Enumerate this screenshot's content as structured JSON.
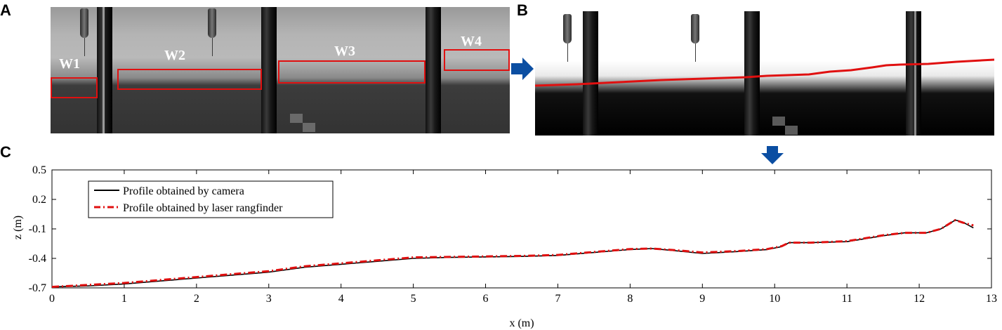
{
  "panels": {
    "a": {
      "letter": "A",
      "windows": [
        "W1",
        "W2",
        "W3",
        "W4"
      ]
    },
    "b": {
      "letter": "B"
    },
    "c": {
      "letter": "C"
    }
  },
  "colors": {
    "box": "#e01010",
    "arrow": "#0b4ea2",
    "camera": "#000000",
    "laser": "#e01010"
  },
  "icons": [
    "right-arrow-icon",
    "down-arrow-icon"
  ],
  "chart_data": {
    "type": "line",
    "title": "",
    "xlabel": "x (m)",
    "ylabel": "z (m)",
    "xlim": [
      0,
      13
    ],
    "ylim": [
      -0.7,
      0.5
    ],
    "xticks": [
      0,
      1,
      2,
      3,
      4,
      5,
      6,
      7,
      8,
      9,
      10,
      11,
      12,
      13
    ],
    "yticks": [
      "0.5",
      "0.2",
      "-0.1",
      "-0.4",
      "-0.7"
    ],
    "legend": "top-left",
    "grid": false,
    "series": [
      {
        "name": "Profile obtained by camera",
        "style": "solid",
        "x": [
          0,
          0.5,
          1,
          1.5,
          2,
          2.5,
          3,
          3.5,
          4,
          4.5,
          5,
          5.5,
          6,
          6.5,
          7,
          7.5,
          8,
          8.3,
          8.6,
          9,
          9.5,
          9.9,
          10.1,
          10.2,
          10.5,
          11,
          11.5,
          11.8,
          12.1,
          12.3,
          12.5,
          12.6,
          12.75
        ],
        "y": [
          -0.69,
          -0.68,
          -0.66,
          -0.63,
          -0.6,
          -0.57,
          -0.54,
          -0.49,
          -0.46,
          -0.43,
          -0.4,
          -0.39,
          -0.385,
          -0.38,
          -0.37,
          -0.34,
          -0.31,
          -0.3,
          -0.32,
          -0.35,
          -0.33,
          -0.31,
          -0.28,
          -0.24,
          -0.24,
          -0.23,
          -0.17,
          -0.14,
          -0.14,
          -0.1,
          -0.01,
          -0.03,
          -0.09
        ]
      },
      {
        "name": "Profile obtained by laser rangfinder",
        "style": "dash-dot",
        "x": [
          0,
          0.5,
          1,
          1.5,
          2,
          2.5,
          3,
          3.5,
          4,
          4.5,
          5,
          5.5,
          6,
          6.5,
          7,
          7.5,
          8,
          8.3,
          8.6,
          9,
          9.5,
          9.9,
          10.1,
          10.2,
          10.5,
          11,
          11.5,
          11.8,
          12.1,
          12.3,
          12.5,
          12.6,
          12.75
        ],
        "y": [
          -0.69,
          -0.67,
          -0.65,
          -0.62,
          -0.59,
          -0.56,
          -0.53,
          -0.48,
          -0.45,
          -0.42,
          -0.39,
          -0.385,
          -0.38,
          -0.375,
          -0.365,
          -0.335,
          -0.305,
          -0.3,
          -0.315,
          -0.34,
          -0.325,
          -0.305,
          -0.275,
          -0.24,
          -0.24,
          -0.225,
          -0.165,
          -0.14,
          -0.14,
          -0.1,
          -0.01,
          -0.035,
          -0.065
        ]
      }
    ]
  }
}
